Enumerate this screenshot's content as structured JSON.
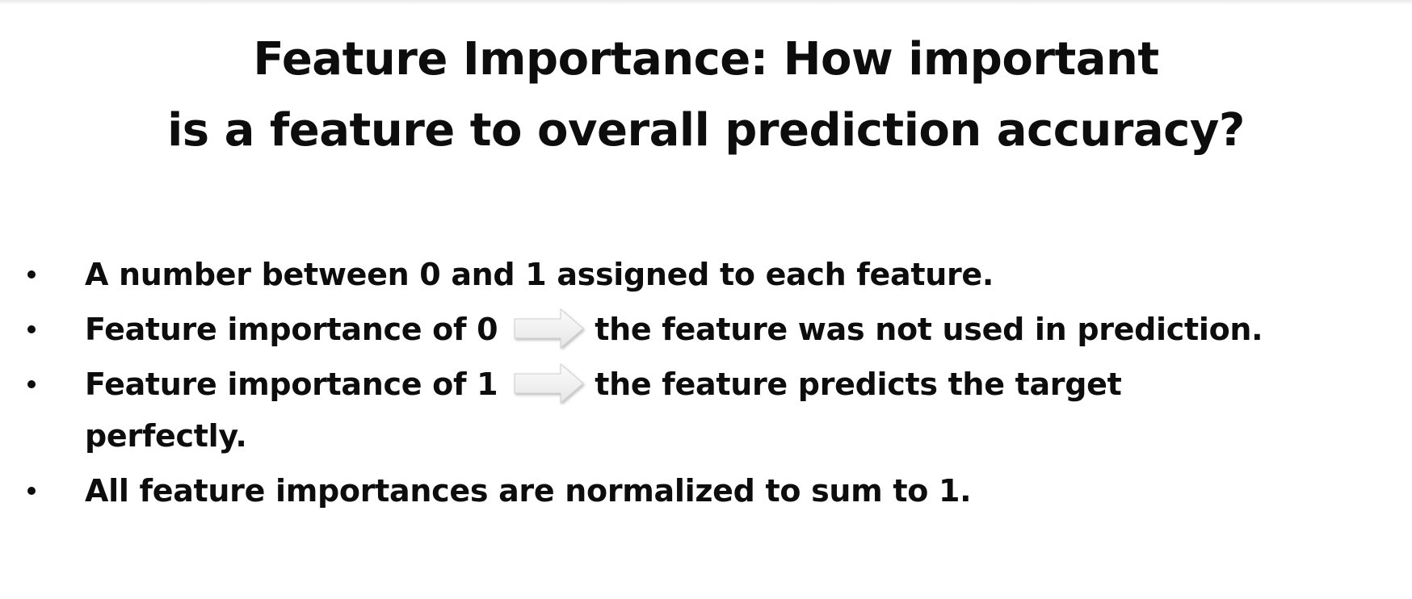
{
  "slide": {
    "title_lines": [
      "Feature Importance: How important",
      "is a feature to overall prediction accuracy?"
    ],
    "bullets": [
      {
        "text": "A number between 0 and 1 assigned to each feature."
      },
      {
        "lead": "Feature importance of 0",
        "arrow_icon": "right-arrow-icon",
        "tail": "the feature was not used in prediction."
      },
      {
        "lead": "Feature importance of 1",
        "arrow_icon": "right-arrow-icon",
        "tail": "the feature predicts the target",
        "continuation": "perfectly."
      },
      {
        "text": "All feature importances are normalized to sum to 1."
      }
    ]
  }
}
